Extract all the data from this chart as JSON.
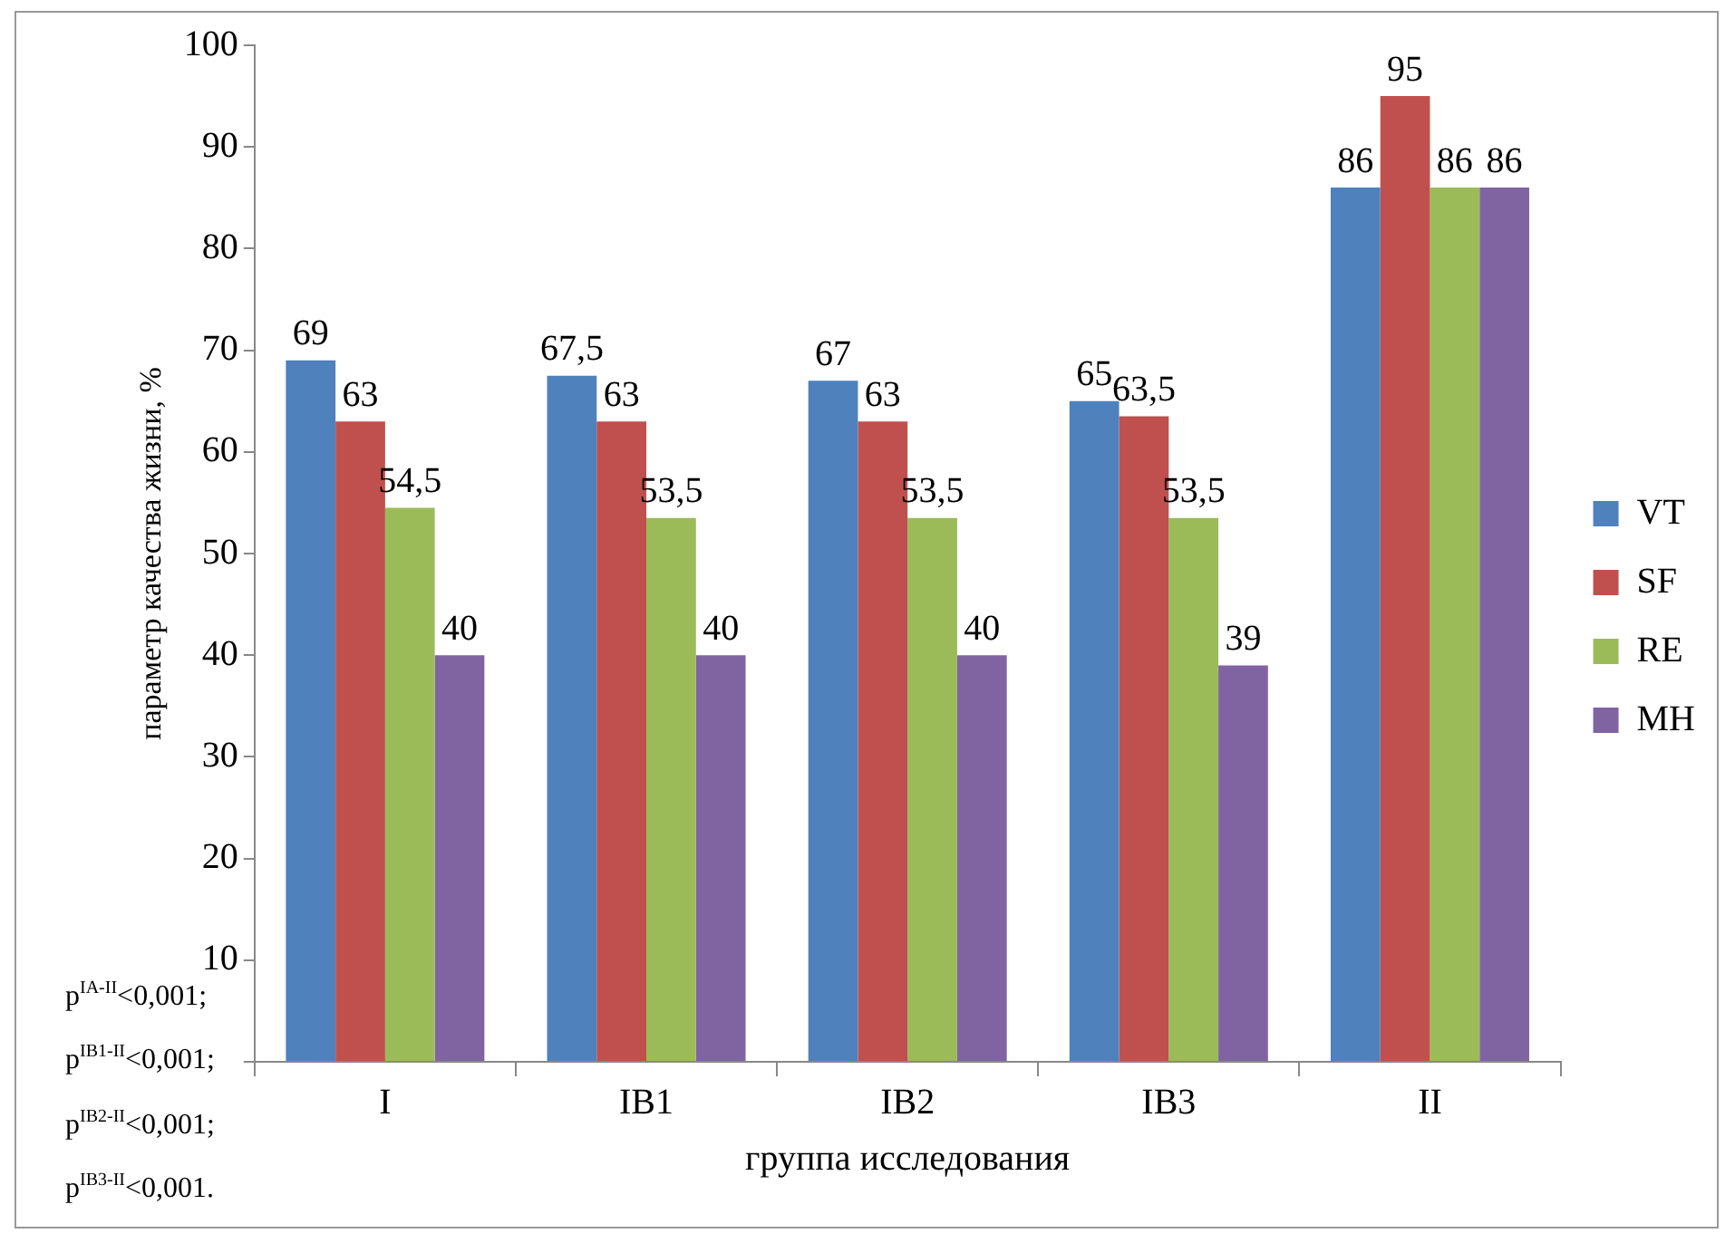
{
  "chart_data": {
    "type": "bar",
    "ylabel": "параметр качества жизни, %",
    "xlabel": "группа исследования",
    "categories": [
      "I",
      "IB1",
      "IB2",
      "IB3",
      "II"
    ],
    "series": [
      {
        "name": "VT",
        "color": "#4f81bd",
        "values": [
          69,
          67.5,
          67,
          65,
          86
        ],
        "value_labels": [
          "69",
          "67,5",
          "67",
          "65",
          "86"
        ]
      },
      {
        "name": "SF",
        "color": "#c0504d",
        "values": [
          63,
          63,
          63,
          63.5,
          95
        ],
        "value_labels": [
          "63",
          "63",
          "63",
          "63,5",
          "95"
        ]
      },
      {
        "name": "RE",
        "color": "#9bbb59",
        "values": [
          54.5,
          53.5,
          53.5,
          53.5,
          86
        ],
        "value_labels": [
          "54,5",
          "53,5",
          "53,5",
          "53,5",
          "86"
        ]
      },
      {
        "name": "MH",
        "color": "#8064a2",
        "values": [
          40,
          40,
          40,
          39,
          86
        ],
        "value_labels": [
          "40",
          "40",
          "40",
          "39",
          "86"
        ]
      }
    ],
    "ylim": [
      0,
      100
    ],
    "yticks": [
      {
        "value": 0,
        "label": null
      },
      10,
      20,
      30,
      40,
      50,
      60,
      70,
      80,
      90,
      100
    ],
    "legend": "right",
    "annotations": [
      "p$^{IA-II}$<0,001;",
      "p$^{IB1-II}$<0,001;",
      "p$^{IB2-II}$<0,001;",
      "p$^{IB3-II}$<0,001."
    ]
  }
}
